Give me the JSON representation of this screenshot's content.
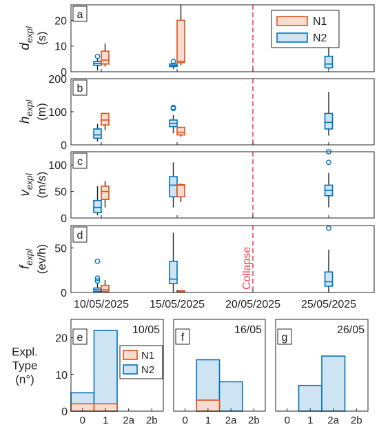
{
  "colors": {
    "n1_edge": "#d95319",
    "n1_fill": "#f8dccf",
    "n2_edge": "#0072bd",
    "n2_fill": "#cfe4f3",
    "whisker": "#222222",
    "collapse": "#f03c4c",
    "axis": "#222222"
  },
  "chart_data": [
    {
      "panel": "a",
      "type": "box",
      "ylabel": "d",
      "ylabel_sub": "expl",
      "ylabel_unit": "(s)",
      "ylim": [
        0,
        26
      ],
      "yticks": [
        0,
        10,
        20
      ],
      "xlim": [
        0,
        20
      ],
      "xticks": [
        {
          "x": 2,
          "label": "10/05/2025"
        },
        {
          "x": 7,
          "label": "15/05/2025"
        },
        {
          "x": 12,
          "label": "20/05/2025"
        },
        {
          "x": 17,
          "label": "25/05/2025"
        }
      ],
      "show_xticklabels": false,
      "legend": {
        "entries": [
          "N1",
          "N2"
        ],
        "position": "top-right"
      },
      "boxes": [
        {
          "series": "N2",
          "date": "10/05/2025",
          "x": 1.75,
          "whisker_low": 0.5,
          "q1": 2.5,
          "median": 3.2,
          "q3": 4,
          "whisker_high": 5,
          "outliers": [
            6
          ]
        },
        {
          "series": "N1",
          "date": "10/05/2025",
          "x": 2.25,
          "whisker_low": 2,
          "q1": 3,
          "median": 4.5,
          "q3": 8,
          "whisker_high": 11,
          "outliers": []
        },
        {
          "series": "N2",
          "date": "15/05/2025",
          "x": 6.75,
          "whisker_low": 1,
          "q1": 2,
          "median": 2.5,
          "q3": 3,
          "whisker_high": 3.5,
          "outliers": [
            4
          ]
        },
        {
          "series": "N1",
          "date": "15/05/2025",
          "x": 7.25,
          "whisker_low": 2.5,
          "q1": 3.5,
          "median": 4,
          "q3": 20,
          "whisker_high": 26,
          "outliers": []
        },
        {
          "series": "N2",
          "date": "25/05/2025",
          "x": 17,
          "whisker_low": 1,
          "q1": 1.5,
          "median": 3,
          "q3": 6,
          "whisker_high": 10,
          "outliers": []
        }
      ]
    },
    {
      "panel": "b",
      "type": "box",
      "ylabel": "h",
      "ylabel_sub": "expl",
      "ylabel_unit": "(m)",
      "ylim": [
        0,
        200
      ],
      "yticks": [
        0,
        100,
        200
      ],
      "xlim": [
        0,
        20
      ],
      "show_xticklabels": false,
      "boxes": [
        {
          "series": "N2",
          "date": "10/05/2025",
          "x": 1.75,
          "whisker_low": 10,
          "q1": 20,
          "median": 30,
          "q3": 48,
          "whisker_high": 63,
          "outliers": []
        },
        {
          "series": "N1",
          "date": "10/05/2025",
          "x": 2.25,
          "whisker_low": 45,
          "q1": 60,
          "median": 75,
          "q3": 95,
          "whisker_high": 97,
          "outliers": []
        },
        {
          "series": "N2",
          "date": "15/05/2025",
          "x": 6.75,
          "whisker_low": 35,
          "q1": 55,
          "median": 65,
          "q3": 75,
          "whisker_high": 90,
          "outliers": [
            110,
            113
          ]
        },
        {
          "series": "N1",
          "date": "15/05/2025",
          "x": 7.25,
          "whisker_low": 25,
          "q1": 30,
          "median": 38,
          "q3": 53,
          "whisker_high": 55,
          "outliers": []
        },
        {
          "series": "N2",
          "date": "25/05/2025",
          "x": 17,
          "whisker_low": 28,
          "q1": 48,
          "median": 68,
          "q3": 95,
          "whisker_high": 160,
          "outliers": []
        }
      ]
    },
    {
      "panel": "c",
      "type": "box",
      "ylabel": "v",
      "ylabel_sub": "expl",
      "ylabel_unit": "(m/s)",
      "ylim": [
        0,
        125
      ],
      "yticks": [
        0,
        50,
        100
      ],
      "xlim": [
        0,
        20
      ],
      "show_xticklabels": false,
      "boxes": [
        {
          "series": "N2",
          "date": "10/05/2025",
          "x": 1.75,
          "whisker_low": 5,
          "q1": 10,
          "median": 20,
          "q3": 33,
          "whisker_high": 60,
          "outliers": []
        },
        {
          "series": "N1",
          "date": "10/05/2025",
          "x": 2.25,
          "whisker_low": 20,
          "q1": 35,
          "median": 50,
          "q3": 60,
          "whisker_high": 70,
          "outliers": []
        },
        {
          "series": "N2",
          "date": "15/05/2025",
          "x": 6.75,
          "whisker_low": 20,
          "q1": 40,
          "median": 62,
          "q3": 78,
          "whisker_high": 105,
          "outliers": []
        },
        {
          "series": "N1",
          "date": "15/05/2025",
          "x": 7.25,
          "whisker_low": 30,
          "q1": 40,
          "median": 62,
          "q3": 63,
          "whisker_high": 65,
          "outliers": []
        },
        {
          "series": "N2",
          "date": "25/05/2025",
          "x": 17,
          "whisker_low": 20,
          "q1": 42,
          "median": 52,
          "q3": 62,
          "whisker_high": 85,
          "outliers": [
            105,
            125
          ]
        }
      ]
    },
    {
      "panel": "d",
      "type": "box",
      "ylabel": "f",
      "ylabel_sub": "expl",
      "ylabel_unit": "(ev/h)",
      "ylim": [
        0,
        75
      ],
      "yticks": [
        0,
        50
      ],
      "xlim": [
        0,
        20
      ],
      "show_xticklabels": true,
      "xticks": [
        {
          "x": 2,
          "label": "10/05/2025"
        },
        {
          "x": 7,
          "label": "15/05/2025"
        },
        {
          "x": 12,
          "label": "20/05/2025"
        },
        {
          "x": 17,
          "label": "25/05/2025"
        }
      ],
      "collapse_label": "Collapse",
      "boxes": [
        {
          "series": "N2",
          "date": "10/05/2025",
          "x": 1.75,
          "whisker_low": 0,
          "q1": 1,
          "median": 3,
          "q3": 5,
          "whisker_high": 10,
          "outliers": [
            13,
            16,
            35
          ]
        },
        {
          "series": "N1",
          "date": "10/05/2025",
          "x": 2.25,
          "whisker_low": 0,
          "q1": 1,
          "median": 3,
          "q3": 8,
          "whisker_high": 14,
          "outliers": []
        },
        {
          "series": "N2",
          "date": "15/05/2025",
          "x": 6.75,
          "whisker_low": 0,
          "q1": 10,
          "median": 15,
          "q3": 35,
          "whisker_high": 67,
          "outliers": []
        },
        {
          "series": "N1",
          "date": "15/05/2025",
          "x": 7.25,
          "whisker_low": 1,
          "q1": 1,
          "median": 1.5,
          "q3": 2,
          "whisker_high": 2,
          "outliers": []
        },
        {
          "series": "N2",
          "date": "25/05/2025",
          "x": 17,
          "whisker_low": 0,
          "q1": 7,
          "median": 12,
          "q3": 23,
          "whisker_high": 48,
          "outliers": [
            72
          ]
        }
      ]
    },
    {
      "panel": "e",
      "type": "bar",
      "date_label": "10/05",
      "ylabel_line1": "Expl.",
      "ylabel_line2": "Type",
      "ylabel_unit": "(n°)",
      "ylim": [
        0,
        25
      ],
      "yticks": [
        0,
        10,
        20
      ],
      "categories": [
        "0",
        "1",
        "2a",
        "2b"
      ],
      "series": [
        {
          "name": "N2",
          "values": [
            5,
            22,
            0,
            0
          ]
        },
        {
          "name": "N1",
          "values": [
            2,
            2,
            0,
            0
          ]
        }
      ],
      "legend": {
        "entries": [
          "N1",
          "N2"
        ],
        "position": "top-right"
      }
    },
    {
      "panel": "f",
      "type": "bar",
      "date_label": "16/05",
      "ylim": [
        0,
        25
      ],
      "categories": [
        "0",
        "1",
        "2a",
        "2b"
      ],
      "series": [
        {
          "name": "N2",
          "values": [
            0,
            14,
            8,
            0
          ]
        },
        {
          "name": "N1",
          "values": [
            0,
            3,
            0,
            0
          ]
        }
      ]
    },
    {
      "panel": "g",
      "type": "bar",
      "date_label": "26/05",
      "ylim": [
        0,
        25
      ],
      "categories": [
        "0",
        "1",
        "2a",
        "2b"
      ],
      "series": [
        {
          "name": "N2",
          "values": [
            0,
            7,
            15,
            0
          ]
        },
        {
          "name": "N1",
          "values": [
            0,
            0,
            0,
            0
          ]
        }
      ]
    }
  ]
}
